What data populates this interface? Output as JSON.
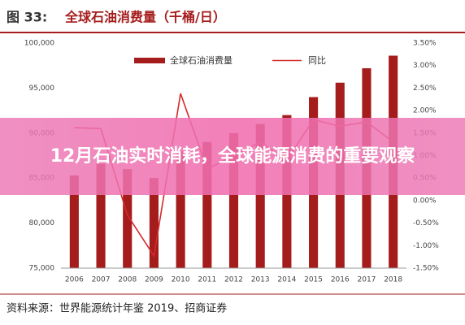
{
  "chart_data": {
    "type": "bar_line",
    "title_prefix": "图 33:",
    "title": "全球石油消费量（千桶/日）",
    "source": "资料来源：世界能源统计年鉴 2019、招商证券",
    "overlay_title": "12月石油实时消耗，全球能源消费的重要观察",
    "categories": [
      "2006",
      "2007",
      "2008",
      "2009",
      "2010",
      "2011",
      "2012",
      "2013",
      "2014",
      "2015",
      "2016",
      "2017",
      "2018"
    ],
    "series": [
      {
        "name": "全球石油消费量",
        "color": "#a51c1c",
        "type": "bar",
        "values": [
          85300,
          86600,
          86000,
          85000,
          88000,
          89000,
          90000,
          91000,
          92000,
          94000,
          95600,
          97200,
          98600
        ]
      },
      {
        "name": "同比",
        "color": "#d42a2a",
        "type": "line",
        "axis": "y2",
        "values": [
          1.62,
          1.6,
          -0.32,
          -1.23,
          2.38,
          0.7,
          1.0,
          1.3,
          0.9,
          1.8,
          1.65,
          1.75,
          1.3
        ]
      }
    ],
    "ylim": [
      75000,
      100000
    ],
    "yticks": [
      {
        "value": 75000,
        "label": "75,000"
      },
      {
        "value": 80000,
        "label": "80,000"
      },
      {
        "value": 85000,
        "label": "85,000"
      },
      {
        "value": 90000,
        "label": "90,000"
      },
      {
        "value": 95000,
        "label": "95,000"
      },
      {
        "value": 100000,
        "label": "100,000"
      }
    ],
    "y2lim": [
      -1.5,
      3.5
    ],
    "y2ticks": [
      {
        "value": -1.5,
        "label": "-1.50%"
      },
      {
        "value": -1.0,
        "label": "-1.00%"
      },
      {
        "value": -0.5,
        "label": "-0.50%"
      },
      {
        "value": 0,
        "label": "0.00%"
      },
      {
        "value": 0.5,
        "label": "0.50%"
      },
      {
        "value": 1.0,
        "label": "1.00%"
      },
      {
        "value": 1.5,
        "label": "1.50%"
      },
      {
        "value": 2.0,
        "label": "2.00%"
      },
      {
        "value": 2.5,
        "label": "2.50%"
      },
      {
        "value": 3.0,
        "label": "3.00%"
      },
      {
        "value": 3.5,
        "label": "3.50%"
      }
    ],
    "legend": "top"
  }
}
